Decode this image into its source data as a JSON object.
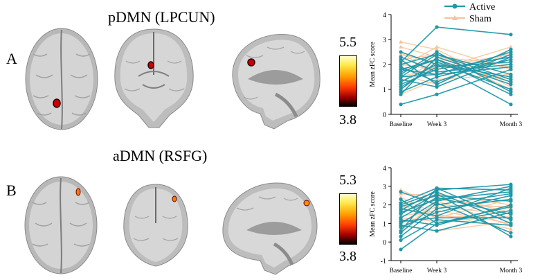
{
  "figure": {
    "panels": [
      {
        "letter": "A",
        "title": "pDMN (LPCUN)",
        "colorbar": {
          "max": "5.5",
          "min": "3.8"
        }
      },
      {
        "letter": "B",
        "title": "aDMN (RSFG)",
        "colorbar": {
          "max": "5.3",
          "min": "3.8"
        }
      }
    ],
    "legend": {
      "active": "Active",
      "sham": "Sham"
    },
    "colors": {
      "active": "#1e98a8",
      "sham": "#f5c29a",
      "blob_core": "#cc0000"
    }
  },
  "chart_data": [
    {
      "type": "line",
      "ylabel": "Mean zFC score",
      "categories": [
        "Baseline",
        "Week 3",
        "Month 3"
      ],
      "ylim": [
        0,
        4
      ],
      "yticks": [
        "0",
        "1",
        "2",
        "3",
        "4"
      ],
      "legend": "top-right",
      "series": [
        {
          "name": "Active",
          "lines": [
            [
              1.2,
              1.8,
              2.3
            ],
            [
              0.4,
              0.8,
              1.8
            ],
            [
              1.8,
              2.2,
              0.8
            ],
            [
              2.1,
              3.5,
              3.2
            ],
            [
              1.5,
              1.6,
              1.9
            ],
            [
              0.8,
              2.3,
              1.3
            ],
            [
              1.9,
              1.3,
              2.4
            ],
            [
              2.5,
              2.0,
              0.4
            ],
            [
              1.1,
              1.9,
              2.1
            ],
            [
              1.7,
              2.2,
              1.2
            ],
            [
              1.4,
              1.1,
              2.3
            ],
            [
              2.0,
              2.4,
              1.6
            ],
            [
              0.9,
              1.5,
              2.2
            ],
            [
              1.6,
              2.5,
              0.9
            ],
            [
              2.3,
              1.7,
              2.0
            ],
            [
              1.3,
              2.0,
              1.5
            ],
            [
              2.2,
              1.2,
              2.6
            ],
            [
              1.0,
              2.1,
              1.0
            ],
            [
              1.8,
              1.6,
              2.5
            ],
            [
              1.5,
              2.4,
              1.4
            ]
          ]
        },
        {
          "name": "Sham",
          "lines": [
            [
              2.9,
              2.6,
              1.1
            ],
            [
              2.0,
              1.8,
              2.7
            ],
            [
              1.3,
              2.2,
              1.9
            ],
            [
              2.5,
              1.5,
              2.2
            ],
            [
              1.0,
              2.0,
              1.4
            ],
            [
              2.2,
              2.4,
              1.0
            ],
            [
              1.6,
              1.2,
              2.5
            ],
            [
              1.9,
              2.7,
              1.8
            ],
            [
              0.8,
              1.4,
              1.6
            ],
            [
              2.4,
              2.1,
              1.3
            ],
            [
              1.5,
              1.9,
              2.4
            ],
            [
              2.7,
              2.3,
              2.0
            ]
          ]
        }
      ]
    },
    {
      "type": "line",
      "ylabel": "Mean zFC score",
      "categories": [
        "Baseline",
        "Week 3",
        "Month 3"
      ],
      "ylim": [
        -1,
        4
      ],
      "yticks": [
        "-1",
        "0",
        "1",
        "2",
        "3",
        "4"
      ],
      "series": [
        {
          "name": "Active",
          "lines": [
            [
              -0.4,
              1.0,
              1.7
            ],
            [
              0.3,
              1.8,
              2.3
            ],
            [
              0.6,
              2.9,
              1.2
            ],
            [
              1.0,
              2.2,
              3.0
            ],
            [
              1.2,
              0.9,
              2.0
            ],
            [
              1.5,
              2.6,
              0.3
            ],
            [
              1.8,
              1.4,
              2.9
            ],
            [
              2.0,
              2.7,
              1.0
            ],
            [
              2.7,
              2.0,
              2.6
            ],
            [
              0.1,
              1.2,
              0.9
            ],
            [
              1.3,
              2.4,
              1.5
            ],
            [
              0.8,
              1.6,
              2.5
            ],
            [
              2.3,
              1.0,
              1.9
            ],
            [
              1.7,
              2.8,
              3.1
            ],
            [
              0.5,
              2.1,
              0.5
            ],
            [
              2.1,
              2.9,
              2.8
            ],
            [
              1.1,
              1.3,
              1.3
            ],
            [
              1.9,
              2.5,
              2.2
            ],
            [
              0.9,
              0.6,
              1.6
            ],
            [
              1.6,
              2.3,
              2.7
            ]
          ]
        },
        {
          "name": "Sham",
          "lines": [
            [
              2.6,
              2.5,
              1.6
            ],
            [
              1.4,
              1.7,
              1.0
            ],
            [
              0.6,
              2.2,
              0.9
            ],
            [
              2.2,
              1.4,
              1.3
            ],
            [
              1.8,
              2.6,
              2.0
            ],
            [
              1.1,
              1.9,
              1.5
            ],
            [
              2.4,
              1.5,
              0.7
            ],
            [
              0.9,
              0.6,
              1.1
            ],
            [
              1.6,
              2.3,
              1.8
            ],
            [
              2.0,
              1.3,
              2.3
            ],
            [
              1.3,
              1.1,
              1.4
            ],
            [
              2.8,
              2.0,
              1.9
            ]
          ]
        }
      ]
    }
  ]
}
